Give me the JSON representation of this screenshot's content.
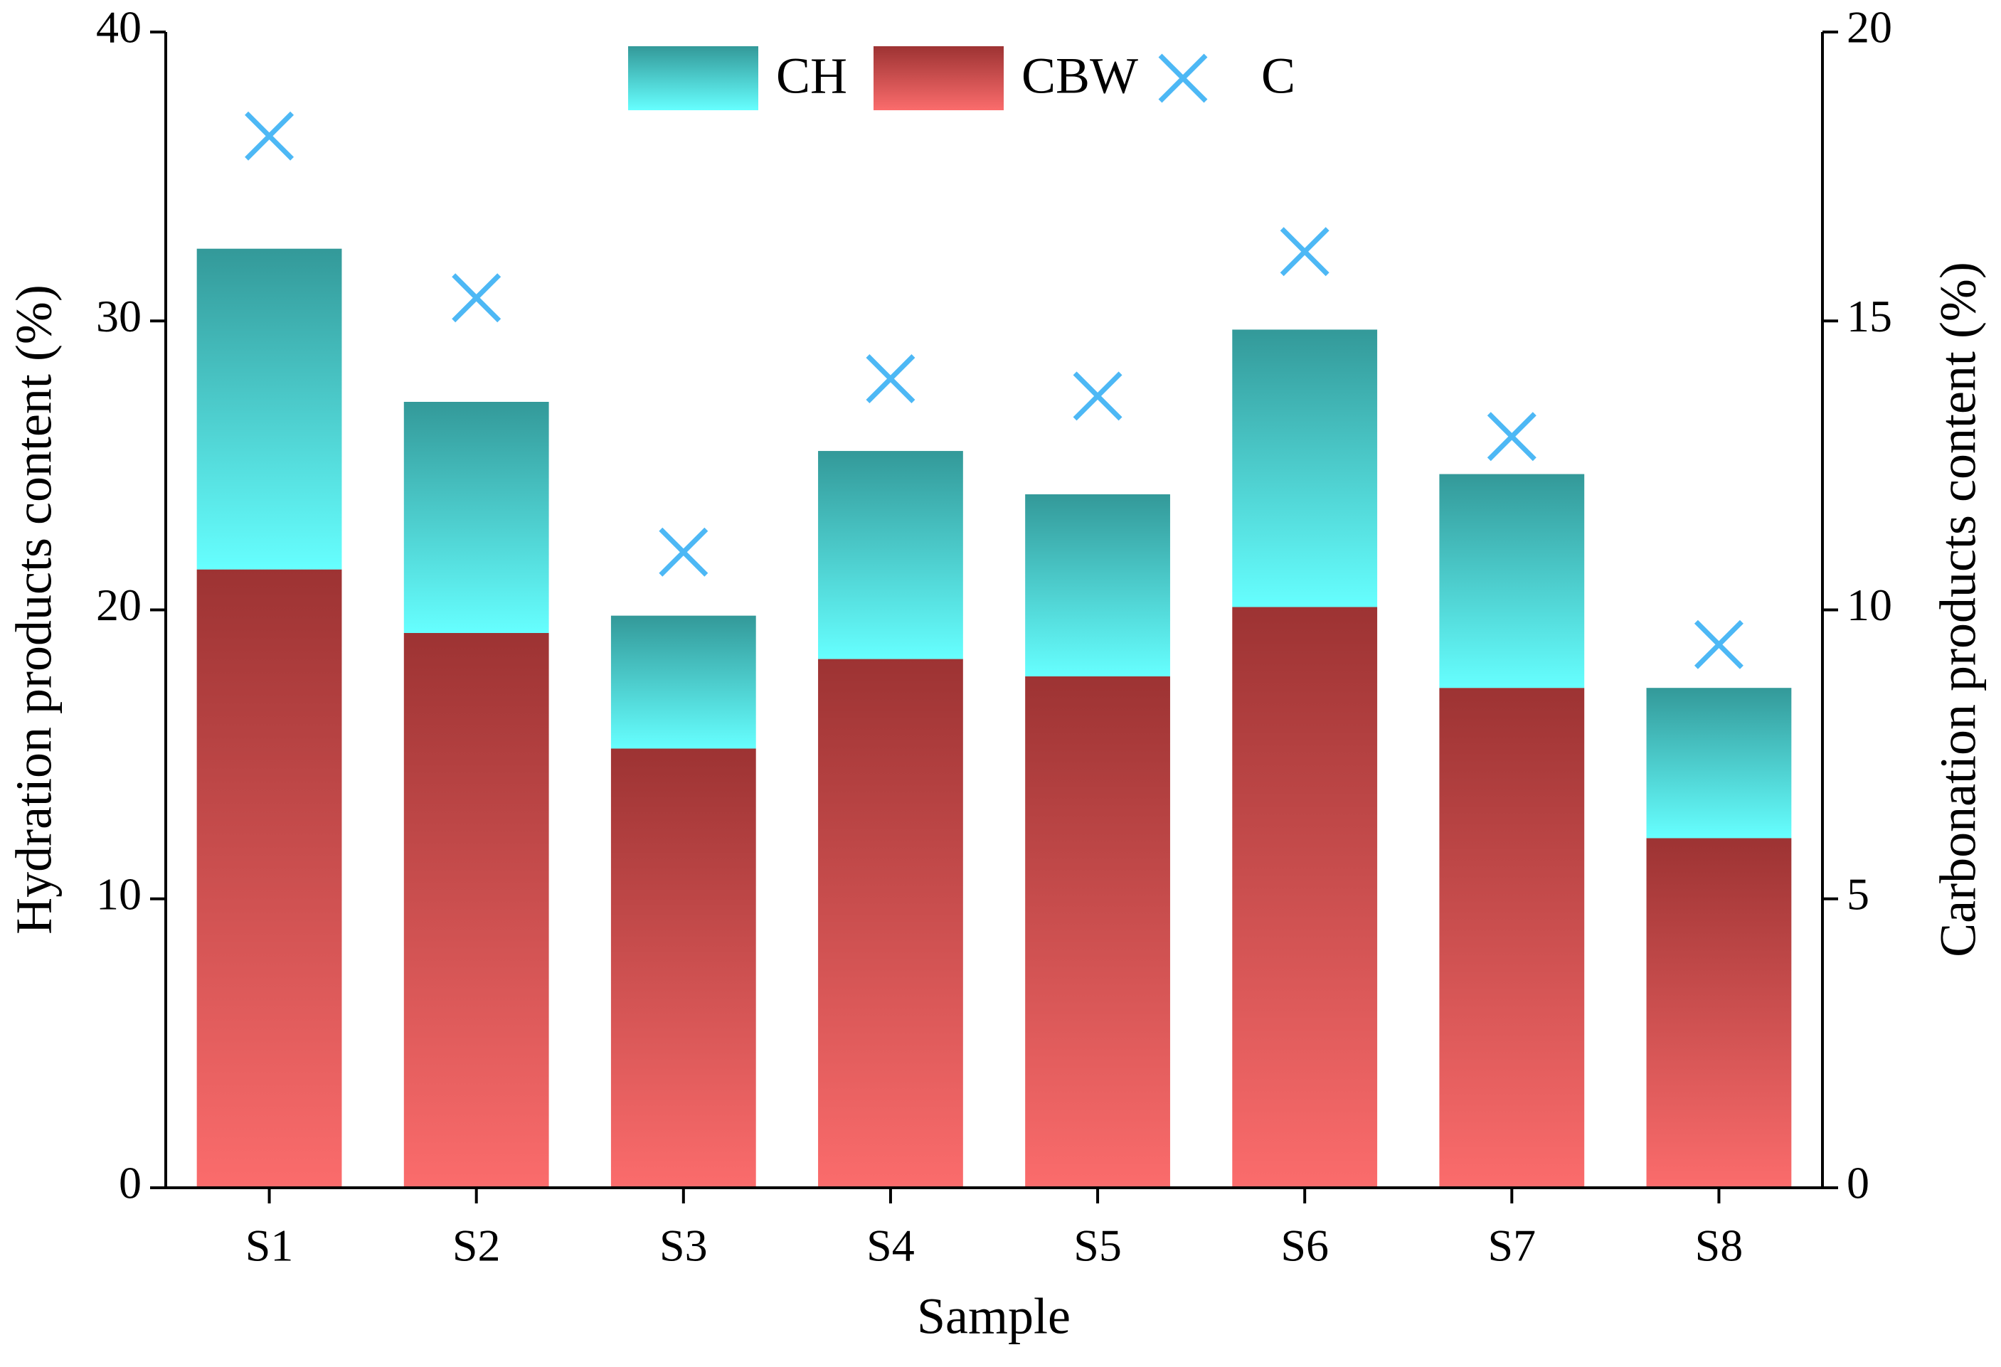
{
  "chart_data": {
    "type": "stacked-bar-scatter",
    "x_label": "Sample",
    "y_label": "Hydration products content (%)",
    "y2_label": "Carbonation products content (%)",
    "categories": [
      "S1",
      "S2",
      "S3",
      "S4",
      "S5",
      "S6",
      "S7",
      "S8"
    ],
    "series": [
      {
        "name": "CH",
        "type": "bar",
        "color": [
          "#66ffff",
          "#339999"
        ],
        "values": [
          11.1,
          8.0,
          4.6,
          7.2,
          6.3,
          9.6,
          7.4,
          5.2
        ]
      },
      {
        "name": "CBW",
        "type": "bar",
        "color": [
          "#fb6c6c",
          "#9d3333"
        ],
        "values": [
          21.4,
          19.2,
          15.2,
          18.3,
          17.7,
          20.1,
          17.3,
          12.1
        ]
      },
      {
        "name": "C",
        "type": "scatter",
        "axis": "y2",
        "color": "#4db8f5",
        "values": [
          18.2,
          15.4,
          11.0,
          14.0,
          13.7,
          16.2,
          13.0,
          9.4
        ]
      }
    ],
    "ylim": [
      0,
      40
    ],
    "yticks": [
      0,
      10,
      20,
      30,
      40
    ],
    "y2lim": [
      0,
      20
    ],
    "y2ticks": [
      0,
      5,
      10,
      15,
      20
    ],
    "stack_order": [
      "CBW",
      "CH"
    ],
    "grid": false
  }
}
